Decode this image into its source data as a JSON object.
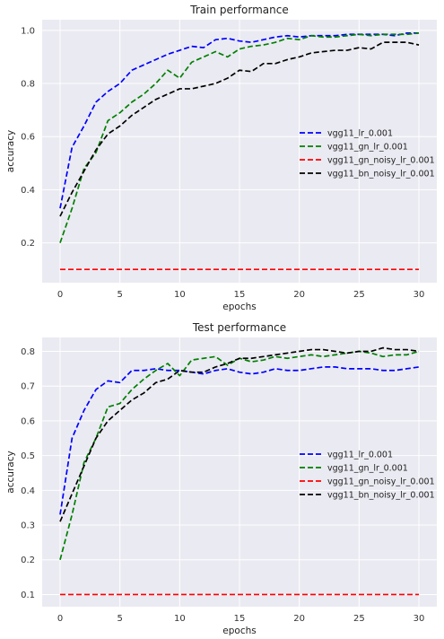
{
  "chart_data": [
    {
      "type": "line",
      "title": "Train performance",
      "xlabel": "epochs",
      "ylabel": "accuracy",
      "xlim": [
        -1.5,
        31.5
      ],
      "ylim": [
        0.05,
        1.04
      ],
      "xticks": [
        0,
        5,
        10,
        15,
        20,
        25,
        30
      ],
      "yticks": [
        0.2,
        0.4,
        0.6,
        0.8,
        1.0
      ],
      "ytick_labels": [
        "0.2",
        "0.4",
        "0.6",
        "0.8",
        "1.0"
      ],
      "grid": true,
      "legend_position": "center-right",
      "x": [
        0,
        1,
        2,
        3,
        4,
        5,
        6,
        7,
        8,
        9,
        10,
        11,
        12,
        13,
        14,
        15,
        16,
        17,
        18,
        19,
        20,
        21,
        22,
        23,
        24,
        25,
        26,
        27,
        28,
        29,
        30
      ],
      "series": [
        {
          "name": "vgg11_lr_0.001",
          "color": "#0000ff",
          "values": [
            0.33,
            0.56,
            0.64,
            0.73,
            0.77,
            0.8,
            0.85,
            0.87,
            0.89,
            0.91,
            0.925,
            0.94,
            0.935,
            0.965,
            0.97,
            0.96,
            0.955,
            0.965,
            0.975,
            0.98,
            0.975,
            0.98,
            0.98,
            0.98,
            0.985,
            0.985,
            0.985,
            0.985,
            0.98,
            0.99,
            0.99
          ]
        },
        {
          "name": "vgg11_gn_lr_0.001",
          "color": "#008000",
          "values": [
            0.2,
            0.33,
            0.48,
            0.54,
            0.66,
            0.69,
            0.73,
            0.76,
            0.8,
            0.85,
            0.82,
            0.88,
            0.9,
            0.92,
            0.9,
            0.93,
            0.94,
            0.945,
            0.955,
            0.97,
            0.965,
            0.98,
            0.975,
            0.975,
            0.98,
            0.985,
            0.98,
            0.985,
            0.985,
            0.985,
            0.99
          ]
        },
        {
          "name": "vgg11_gn_noisy_lr_0.001",
          "color": "#ff0000",
          "values": [
            0.1,
            0.1,
            0.1,
            0.1,
            0.1,
            0.1,
            0.1,
            0.1,
            0.1,
            0.1,
            0.1,
            0.1,
            0.1,
            0.1,
            0.1,
            0.1,
            0.1,
            0.1,
            0.1,
            0.1,
            0.1,
            0.1,
            0.1,
            0.1,
            0.1,
            0.1,
            0.1,
            0.1,
            0.1,
            0.1,
            0.1
          ]
        },
        {
          "name": "vgg11_bn_noisy_lr_0.001",
          "color": "#000000",
          "values": [
            0.3,
            0.39,
            0.47,
            0.55,
            0.61,
            0.64,
            0.68,
            0.71,
            0.74,
            0.76,
            0.78,
            0.78,
            0.79,
            0.8,
            0.82,
            0.85,
            0.845,
            0.875,
            0.875,
            0.89,
            0.9,
            0.915,
            0.92,
            0.925,
            0.925,
            0.935,
            0.93,
            0.955,
            0.955,
            0.955,
            0.945
          ]
        }
      ]
    },
    {
      "type": "line",
      "title": "Test performance",
      "xlabel": "epochs",
      "ylabel": "accuracy",
      "xlim": [
        -1.5,
        31.5
      ],
      "ylim": [
        0.065,
        0.84
      ],
      "xticks": [
        0,
        5,
        10,
        15,
        20,
        25,
        30
      ],
      "yticks": [
        0.1,
        0.2,
        0.3,
        0.4,
        0.5,
        0.6,
        0.7,
        0.8
      ],
      "ytick_labels": [
        "0.1",
        "0.2",
        "0.3",
        "0.4",
        "0.5",
        "0.6",
        "0.7",
        "0.8"
      ],
      "grid": true,
      "legend_position": "center-right",
      "x": [
        0,
        1,
        2,
        3,
        4,
        5,
        6,
        7,
        8,
        9,
        10,
        11,
        12,
        13,
        14,
        15,
        16,
        17,
        18,
        19,
        20,
        21,
        22,
        23,
        24,
        25,
        26,
        27,
        28,
        29,
        30
      ],
      "series": [
        {
          "name": "vgg11_lr_0.001",
          "color": "#0000ff",
          "values": [
            0.33,
            0.55,
            0.63,
            0.69,
            0.715,
            0.71,
            0.745,
            0.745,
            0.75,
            0.745,
            0.745,
            0.74,
            0.735,
            0.745,
            0.75,
            0.74,
            0.735,
            0.74,
            0.75,
            0.745,
            0.745,
            0.75,
            0.755,
            0.755,
            0.75,
            0.75,
            0.75,
            0.745,
            0.745,
            0.75,
            0.755
          ]
        },
        {
          "name": "vgg11_gn_lr_0.001",
          "color": "#008000",
          "values": [
            0.2,
            0.33,
            0.48,
            0.55,
            0.64,
            0.65,
            0.69,
            0.72,
            0.745,
            0.765,
            0.73,
            0.775,
            0.78,
            0.785,
            0.76,
            0.78,
            0.77,
            0.775,
            0.785,
            0.78,
            0.785,
            0.79,
            0.785,
            0.79,
            0.795,
            0.8,
            0.795,
            0.785,
            0.79,
            0.79,
            0.8
          ]
        },
        {
          "name": "vgg11_gn_noisy_lr_0.001",
          "color": "#ff0000",
          "values": [
            0.1,
            0.1,
            0.1,
            0.1,
            0.1,
            0.1,
            0.1,
            0.1,
            0.1,
            0.1,
            0.1,
            0.1,
            0.1,
            0.1,
            0.1,
            0.1,
            0.1,
            0.1,
            0.1,
            0.1,
            0.1,
            0.1,
            0.1,
            0.1,
            0.1,
            0.1,
            0.1,
            0.1,
            0.1,
            0.1,
            0.1
          ]
        },
        {
          "name": "vgg11_bn_noisy_lr_0.001",
          "color": "#000000",
          "values": [
            0.31,
            0.39,
            0.47,
            0.55,
            0.6,
            0.63,
            0.66,
            0.68,
            0.71,
            0.72,
            0.745,
            0.74,
            0.74,
            0.755,
            0.765,
            0.78,
            0.78,
            0.785,
            0.79,
            0.795,
            0.8,
            0.805,
            0.805,
            0.8,
            0.795,
            0.8,
            0.8,
            0.81,
            0.805,
            0.805,
            0.8
          ]
        }
      ]
    }
  ]
}
